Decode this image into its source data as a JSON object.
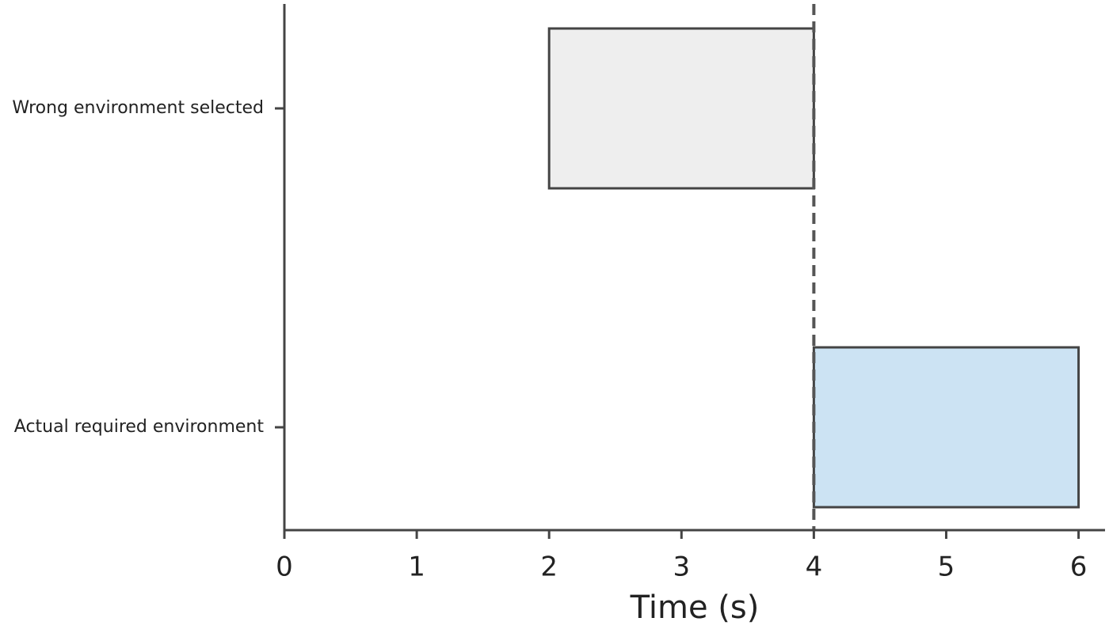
{
  "chart_data": {
    "type": "gantt",
    "categories": [
      "Wrong environment selected",
      "Actual required environment"
    ],
    "start": [
      2,
      4
    ],
    "end": [
      4,
      6
    ],
    "colors": [
      "#eeeeee",
      "#cce3f3"
    ],
    "vline": 4,
    "xlabel": "Time (s)",
    "xlim": [
      0,
      6.2
    ],
    "xticks": [
      0,
      1,
      2,
      3,
      4,
      5,
      6
    ]
  }
}
